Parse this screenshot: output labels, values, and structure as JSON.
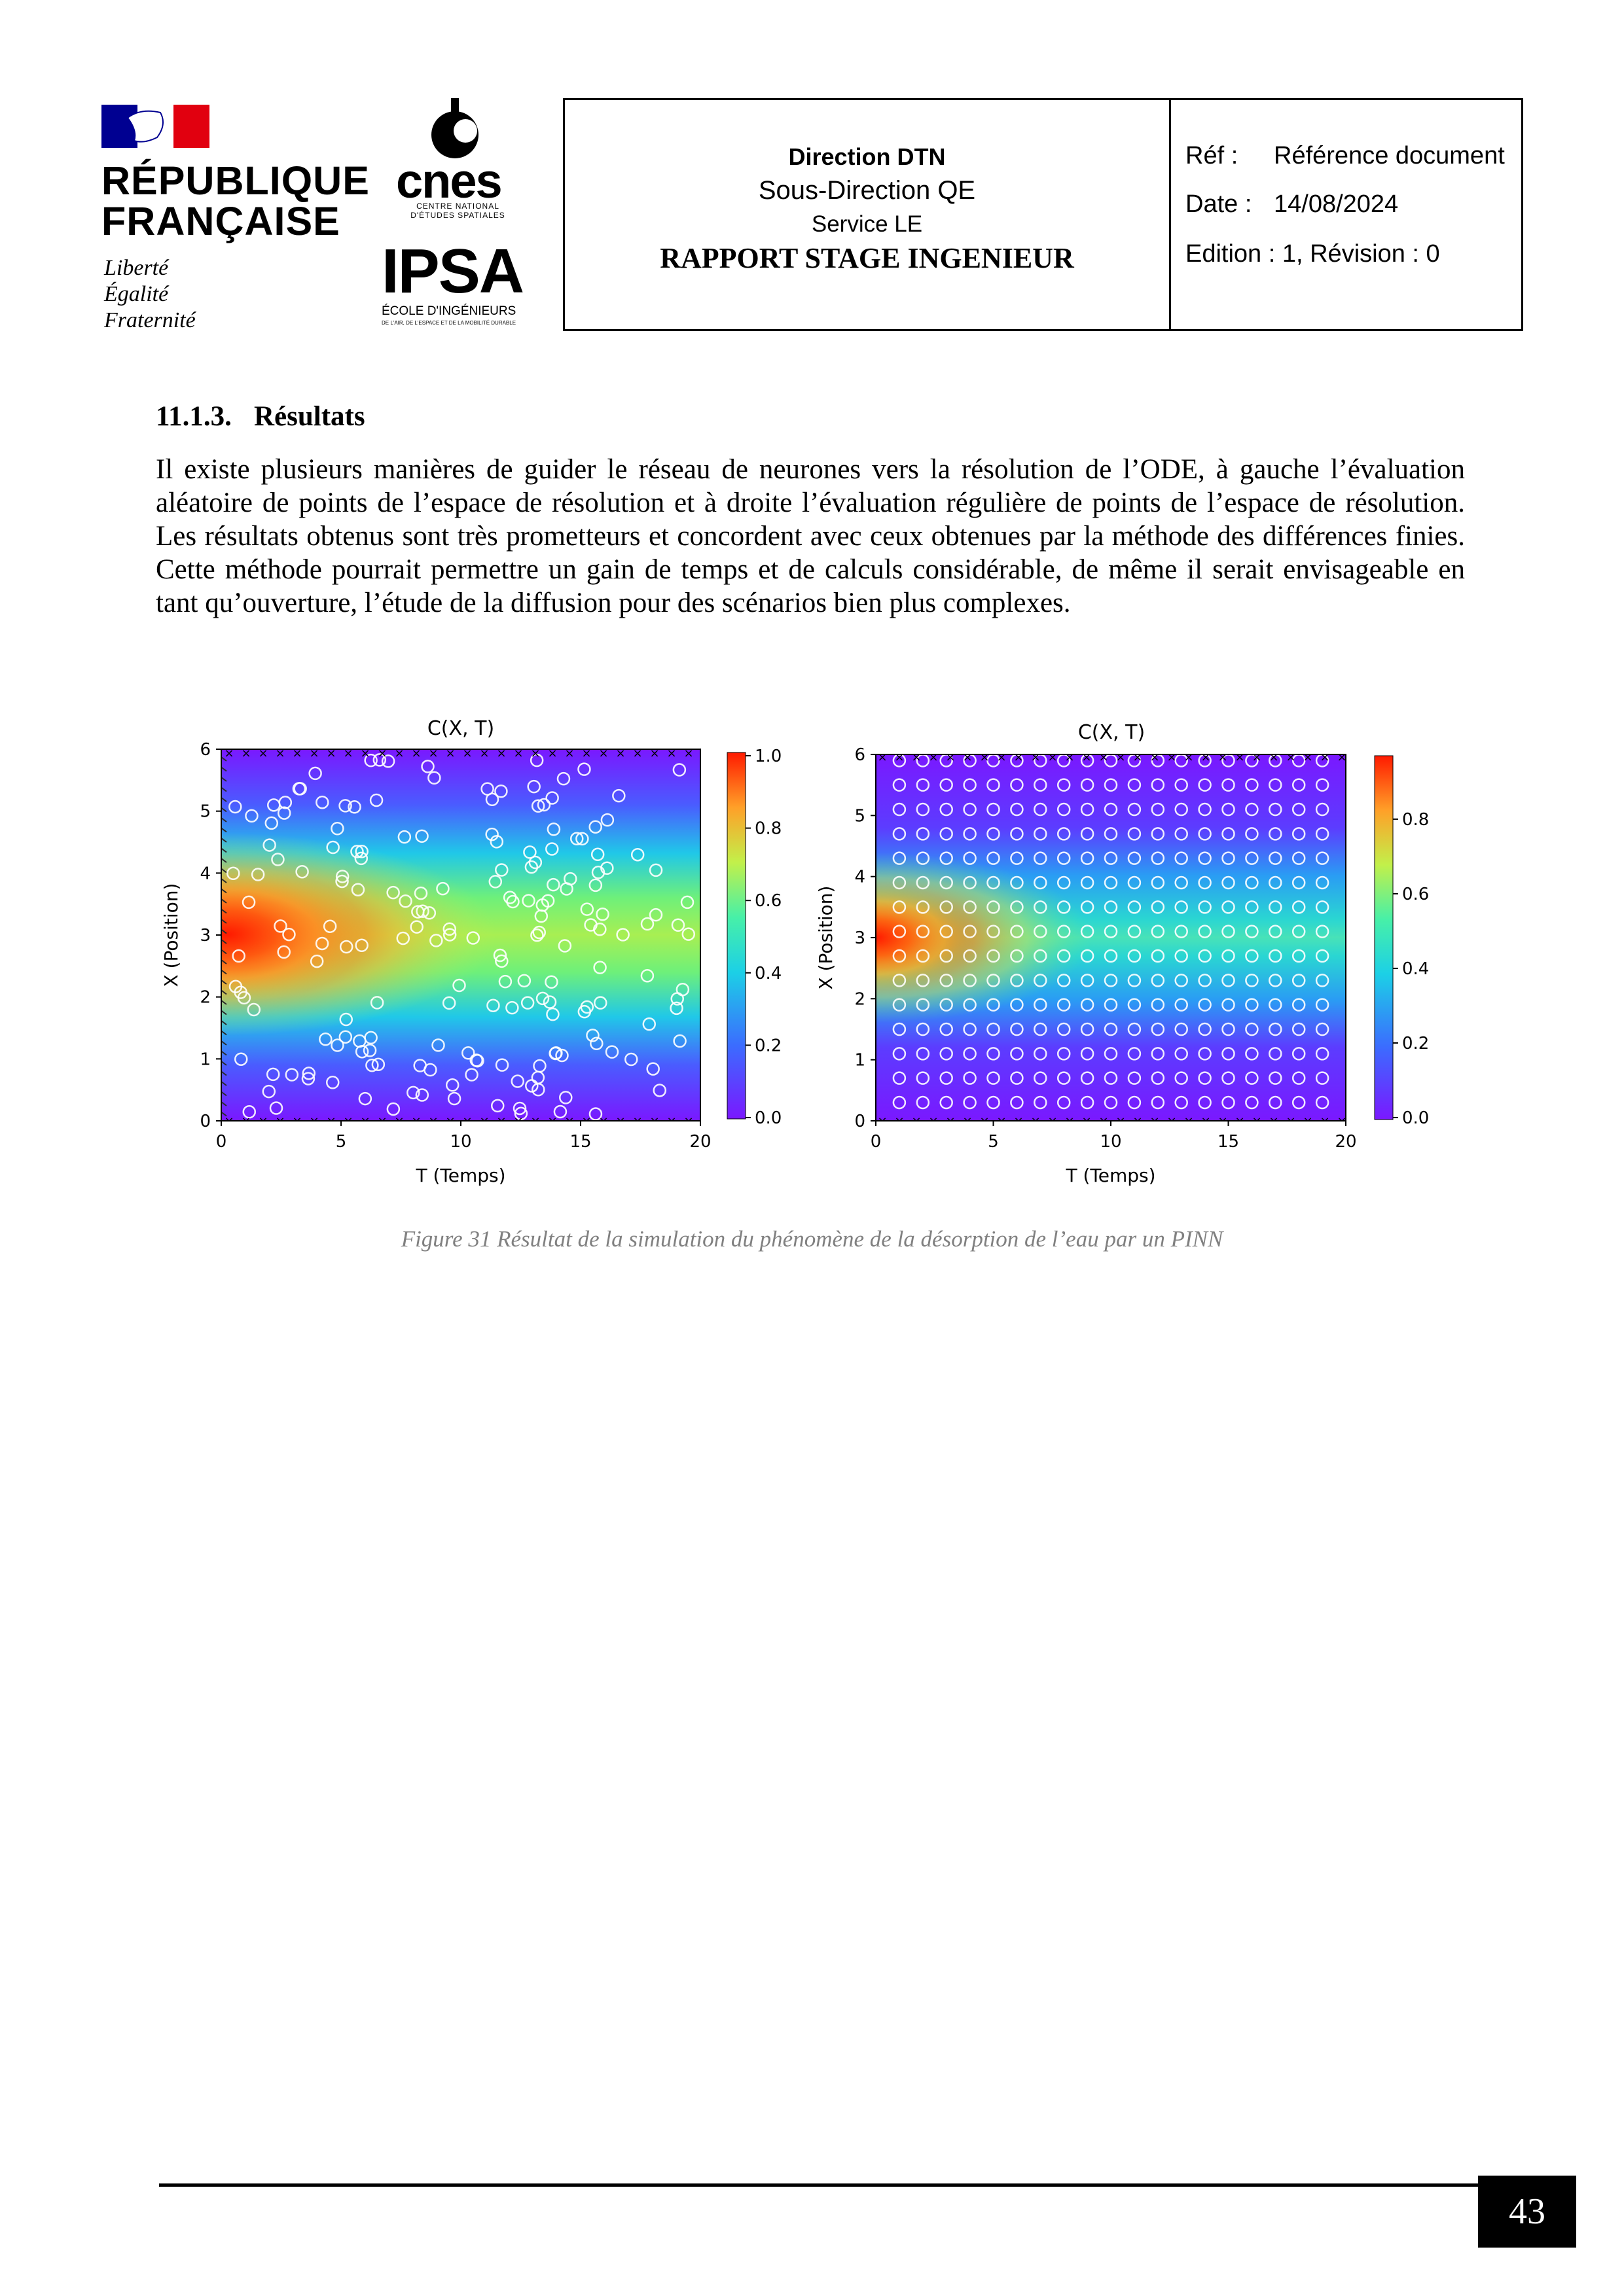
{
  "logos": {
    "republique": {
      "line1": "RÉPUBLIQUE",
      "line2": "FRANÇAISE",
      "motto": [
        "Liberté",
        "Égalité",
        "Fraternité"
      ],
      "colors": {
        "blue": "#000091",
        "red": "#e1000f"
      }
    },
    "cnes": {
      "word": "cnes",
      "sub1": "CENTRE NATIONAL",
      "sub2": "D'ÉTUDES SPATIALES"
    },
    "ipsa": {
      "word": "IPSA",
      "sub1": "ÉCOLE D'INGÉNIEURS",
      "sub2": "DE L'AIR, DE L'ESPACE ET DE LA MOBILITÉ DURABLE"
    }
  },
  "header": {
    "direction": "Direction DTN",
    "sous_direction": "Sous-Direction QE",
    "service": "Service LE",
    "report_title": "RAPPORT STAGE INGENIEUR",
    "ref_label": "Réf :",
    "ref_value": "Référence document",
    "date_label": "Date :",
    "date_value": "14/08/2024",
    "edition": "Edition : 1, Révision : 0"
  },
  "section": {
    "number": "11.1.3.",
    "title": "Résultats",
    "paragraph": "Il existe plusieurs manières de guider le réseau de neurones vers la résolution de l’ODE, à gauche l’évaluation aléatoire de points de l’espace de résolution et à droite l’évaluation régulière de points de l’espace de résolution. Les résultats obtenus sont très prometteurs et concordent avec ceux obtenues par la méthode des différences finies. Cette méthode pourrait permettre un gain de temps et de calculs considérable, de même il serait envisageable en tant qu’ouverture, l’étude de la diffusion pour des scénarios bien plus complexes."
  },
  "figure": {
    "caption": "Figure 31 Résultat de la simulation du phénomène de la désorption de l’eau par un PINN",
    "left_title": "C(X, T)",
    "right_title": "C(X, T)",
    "xlabel": "T (Temps)",
    "ylabel": "X (Position)",
    "x_ticks": [
      "0",
      "5",
      "10",
      "15",
      "20"
    ],
    "y_ticks": [
      "0",
      "1",
      "2",
      "3",
      "4",
      "5",
      "6"
    ],
    "left_cbar_ticks": [
      "0.0",
      "0.2",
      "0.4",
      "0.6",
      "0.8",
      "1.0"
    ],
    "right_cbar_ticks": [
      "0.0",
      "0.2",
      "0.4",
      "0.6",
      "0.8"
    ]
  },
  "chart_data": [
    {
      "type": "heatmap",
      "title": "C(X, T)",
      "xlabel": "T (Temps)",
      "ylabel": "X (Position)",
      "xlim": [
        0,
        20
      ],
      "ylim": [
        0,
        6
      ],
      "colorbar_range": [
        0,
        1.0
      ],
      "peak": {
        "t": 2,
        "x": 3,
        "value": 1.0
      },
      "collocation_points": "random"
    },
    {
      "type": "heatmap",
      "title": "C(X, T)",
      "xlabel": "T (Temps)",
      "ylabel": "X (Position)",
      "xlim": [
        0,
        20
      ],
      "ylim": [
        0,
        6
      ],
      "colorbar_range": [
        0,
        0.97
      ],
      "peak": {
        "t": 0,
        "x": 3,
        "value": 0.95
      },
      "collocation_points": "regular grid",
      "grid_t": [
        1,
        2,
        3,
        4,
        5,
        6,
        7,
        8,
        9,
        10,
        11,
        12,
        13,
        14,
        15,
        16,
        17,
        18,
        19
      ],
      "grid_x": [
        0.3,
        0.7,
        1.1,
        1.5,
        1.9,
        2.3,
        2.7,
        3.1,
        3.5,
        3.9,
        4.3,
        4.7,
        5.1,
        5.5,
        5.9
      ]
    }
  ],
  "footer": {
    "page_number": "43"
  }
}
